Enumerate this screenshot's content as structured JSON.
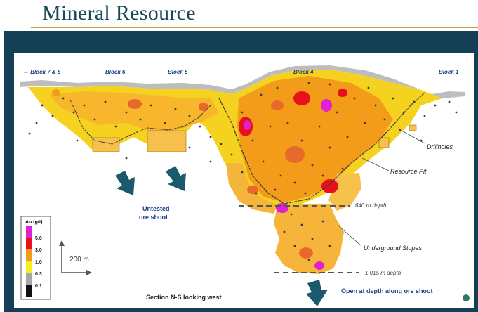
{
  "title": "Mineral Resource",
  "blocks": {
    "b78": "← Block 7 & 8",
    "b6": "Block 6",
    "b5": "Block 5",
    "b4": "Block 4",
    "b1": "Block 1"
  },
  "annotations": {
    "drillholes": "Drillholes",
    "resource_pit": "Resource Pit",
    "depth_640": "640 m depth",
    "underground": "Underground Stopes",
    "depth_1015": "1,015 m depth",
    "untested_1": "Untested",
    "untested_2": "ore shoot",
    "open_depth": "Open at depth along ore shoot",
    "section": "Section N-S looking west",
    "scale": "200 m"
  },
  "legend": {
    "title": "Au (g/t)",
    "items": [
      {
        "label": "5.0",
        "color": "#e21fd2"
      },
      {
        "label": "3.0",
        "color": "#e8101a"
      },
      {
        "label": "1.0",
        "color": "#f29c19"
      },
      {
        "label": "0.3",
        "color": "#f5ee22"
      },
      {
        "label": "0.1",
        "color": "#a8a8a8"
      },
      {
        "label": "",
        "color": "#111111"
      }
    ]
  },
  "colors": {
    "title": "#1a4a5a",
    "rule": "#c9a13b",
    "frame": "#143f55",
    "block_label": "#1b3f8a",
    "arrow": "#1a5a6c"
  }
}
